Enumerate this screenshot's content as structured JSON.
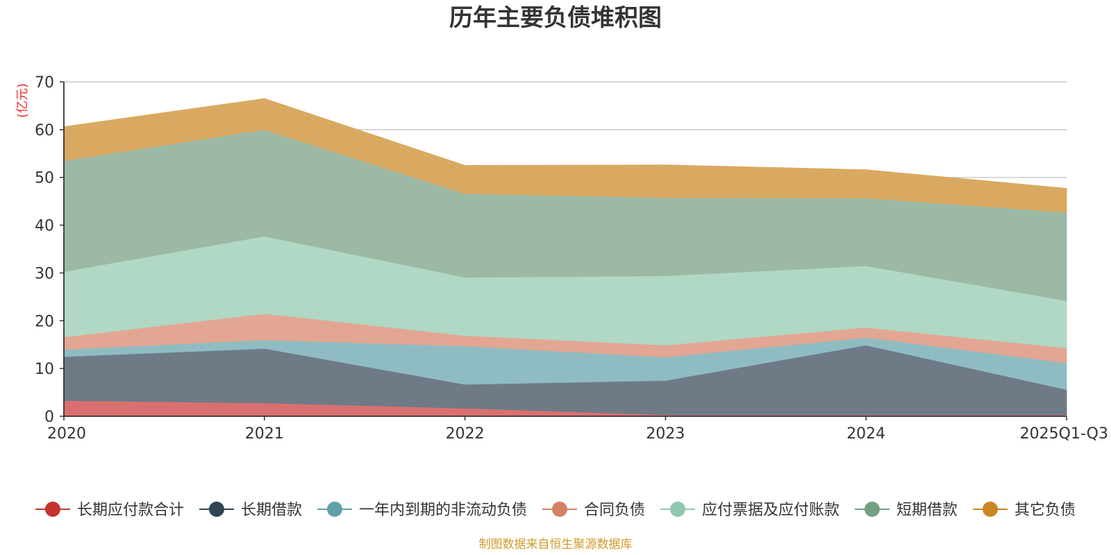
{
  "chart_data": {
    "type": "area",
    "stacked": true,
    "title": "历年主要负债堆积图",
    "ylabel": "(亿元)",
    "xlabel": "",
    "ylim": [
      0,
      70
    ],
    "yticks": [
      0,
      10,
      20,
      30,
      40,
      50,
      60,
      70
    ],
    "grid": true,
    "legend_position": "bottom",
    "categories": [
      "2020",
      "2021",
      "2022",
      "2023",
      "2024",
      "2025Q1-Q3"
    ],
    "series": [
      {
        "name": "长期应付款合计",
        "color": "#d9706f",
        "legend_color": "#c23531",
        "values": [
          3.3,
          2.8,
          1.7,
          0.3,
          0.3,
          0.3
        ]
      },
      {
        "name": "长期借款",
        "color": "#6e7b87",
        "legend_color": "#2f4554",
        "values": [
          9.2,
          11.4,
          5.0,
          7.2,
          14.6,
          5.3
        ]
      },
      {
        "name": "一年内到期的非流动负债",
        "color": "#8fbcc2",
        "legend_color": "#61a0a8",
        "values": [
          1.5,
          1.8,
          8.0,
          4.9,
          1.6,
          5.6
        ]
      },
      {
        "name": "合同负债",
        "color": "#e2a692",
        "legend_color": "#d48265",
        "values": [
          2.6,
          5.5,
          2.2,
          2.5,
          2.1,
          3.1
        ]
      },
      {
        "name": "应付票据及应付账款",
        "color": "#b0d8c5",
        "legend_color": "#91c7ae",
        "values": [
          13.7,
          16.2,
          12.2,
          14.5,
          12.9,
          9.9
        ]
      },
      {
        "name": "短期借款",
        "color": "#9cb9a6",
        "legend_color": "#749f83",
        "values": [
          23.2,
          22.3,
          17.5,
          16.4,
          14.2,
          18.5
        ]
      },
      {
        "name": "其它负债",
        "color": "#d9a961",
        "legend_color": "#ca8622",
        "values": [
          7.1,
          6.5,
          5.9,
          6.8,
          5.9,
          5.0
        ]
      }
    ]
  },
  "source_note": "制图数据来自恒生聚源数据库"
}
